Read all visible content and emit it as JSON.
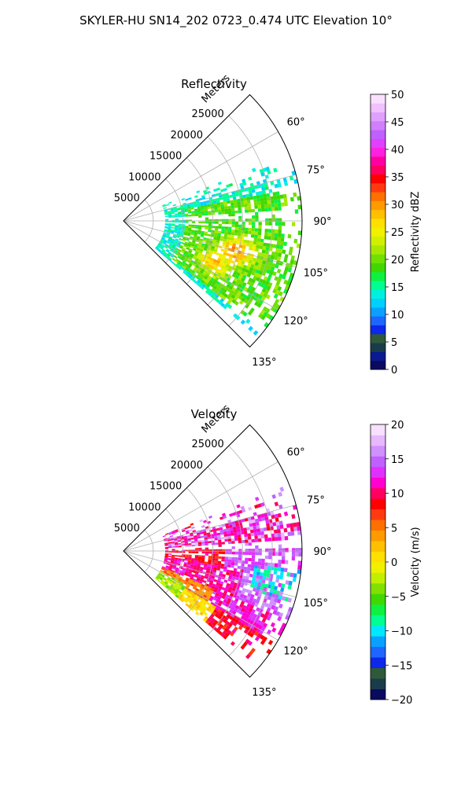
{
  "figure": {
    "title": "SKYLER-HU  SN14_202  0723_0.474 UTC Elevation 10°"
  },
  "chart_data": [
    {
      "type": "heatmap",
      "subtype": "polar-sector (radar PPI)",
      "title": "Reflectivity",
      "r_axis_label": "Meters",
      "r_ticks": [
        5000,
        10000,
        15000,
        20000,
        25000
      ],
      "r_tick_labels": [
        "5000",
        "10000",
        "15000",
        "20000",
        "25000"
      ],
      "rlim": [
        0,
        30000
      ],
      "theta_ticks_deg": [
        60,
        75,
        90,
        105,
        120,
        135
      ],
      "theta_tick_labels": [
        "60°",
        "75°",
        "90°",
        "105°",
        "120°",
        "135°"
      ],
      "theta_range_deg": [
        45,
        135
      ],
      "grid": true,
      "colorbar": {
        "label": "Reflectivity dBZ",
        "range": [
          0,
          50
        ],
        "ticks": [
          0,
          5,
          10,
          15,
          20,
          25,
          30,
          35,
          40,
          45,
          50
        ],
        "tick_labels": [
          "0",
          "5",
          "10",
          "15",
          "20",
          "25",
          "30",
          "35",
          "40",
          "45",
          "50"
        ]
      },
      "summary": {
        "data_azimuth_range_deg": [
          70,
          130
        ],
        "data_range_m": [
          8000,
          28000
        ],
        "dominant_values": "mostly 17-25 dBZ (green) with cores around 28-33 dBZ (yellow/orange) near 100-115° azimuth, edges 10-15 dBZ (cyan)"
      }
    },
    {
      "type": "heatmap",
      "subtype": "polar-sector (radar PPI)",
      "title": "Velocity",
      "r_axis_label": "Meters",
      "r_ticks": [
        5000,
        10000,
        15000,
        20000,
        25000
      ],
      "r_tick_labels": [
        "5000",
        "10000",
        "15000",
        "20000",
        "25000"
      ],
      "rlim": [
        0,
        30000
      ],
      "theta_ticks_deg": [
        60,
        75,
        90,
        105,
        120,
        135
      ],
      "theta_tick_labels": [
        "60°",
        "75°",
        "90°",
        "105°",
        "120°",
        "135°"
      ],
      "theta_range_deg": [
        45,
        135
      ],
      "grid": true,
      "colorbar": {
        "label": "Velocity (m/s)",
        "range": [
          -20,
          20
        ],
        "ticks": [
          -20,
          -15,
          -10,
          -5,
          0,
          5,
          10,
          15,
          20
        ],
        "tick_labels": [
          "−20",
          "−15",
          "−10",
          "−5",
          "0",
          "5",
          "10",
          "15",
          "20"
        ]
      },
      "summary": {
        "data_azimuth_range_deg": [
          70,
          130
        ],
        "data_range_m": [
          8000,
          28000
        ],
        "dominant_values": "mostly +7 to +12 m/s (red) and +13 to +17 m/s (magenta) near 80-115°, 0 to +4 m/s (yellow) at 115-130° near range, pockets of -12 to -8 m/s (cyan) near 95-105° far range"
      }
    }
  ],
  "colors": {
    "grid": "#b0b0b0",
    "spine": "#000000"
  }
}
